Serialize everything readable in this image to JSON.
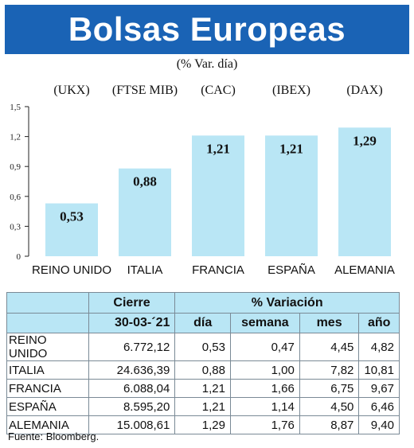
{
  "title": "Bolsas Europeas",
  "subtitle": "(% Var. día)",
  "chart_data": {
    "type": "bar",
    "index_codes": [
      "(UKX)",
      "(FTSE MIB)",
      "(CAC)",
      "(IBEX)",
      "(DAX)"
    ],
    "categories": [
      "REINO UNIDO",
      "ITALIA",
      "FRANCIA",
      "ESPAÑA",
      "ALEMANIA"
    ],
    "values": [
      0.53,
      0.88,
      1.21,
      1.21,
      1.29
    ],
    "value_labels": [
      "0,53",
      "0,88",
      "1,21",
      "1,21",
      "1,29"
    ],
    "yticks": [
      "0",
      "0,3",
      "0,6",
      "0,9",
      "1,2",
      "1,5"
    ],
    "ytick_values": [
      0,
      0.3,
      0.6,
      0.9,
      1.2,
      1.5
    ],
    "ylim": [
      0,
      1.5
    ],
    "bar_color": "#b9e6f5",
    "grid": false
  },
  "table": {
    "header_cierre": "Cierre",
    "header_variacion": "% Variación",
    "date": "30-03-´21",
    "sub_headers": [
      "día",
      "semana",
      "mes",
      "año"
    ],
    "rows": [
      {
        "name": "REINO UNIDO",
        "cierre": "6.772,12",
        "dia": "0,53",
        "semana": "0,47",
        "mes": "4,45",
        "anio": "4,82"
      },
      {
        "name": "ITALIA",
        "cierre": "24.636,39",
        "dia": "0,88",
        "semana": "1,00",
        "mes": "7,82",
        "anio": "10,81"
      },
      {
        "name": "FRANCIA",
        "cierre": "6.088,04",
        "dia": "1,21",
        "semana": "1,66",
        "mes": "6,75",
        "anio": "9,67"
      },
      {
        "name": "ESPAÑA",
        "cierre": "8.595,20",
        "dia": "1,21",
        "semana": "1,14",
        "mes": "4,50",
        "anio": "6,46"
      },
      {
        "name": "ALEMANIA",
        "cierre": "15.008,61",
        "dia": "1,29",
        "semana": "1,76",
        "mes": "8,87",
        "anio": "9,40"
      }
    ]
  },
  "source": "Fuente: Bloomberg.",
  "colors": {
    "banner": "#1a63b5",
    "header_fill": "#b9e6f5"
  }
}
